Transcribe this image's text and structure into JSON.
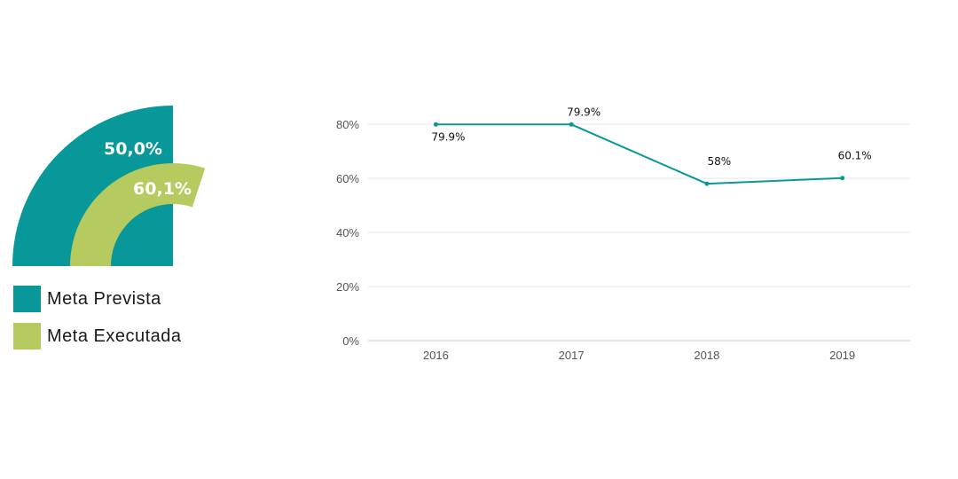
{
  "colors": {
    "teal": "#08989a",
    "green": "#b5ca5f",
    "grid": "#e6e6e6",
    "axis": "#cccccc"
  },
  "legend": [
    {
      "label": "Meta Prevista",
      "color": "#08989a"
    },
    {
      "label": "Meta Executada",
      "color": "#b5ca5f"
    }
  ],
  "chart_data": [
    {
      "type": "pie",
      "variant": "radial-gauge",
      "series": [
        {
          "name": "Meta Prevista",
          "value": 50.0,
          "label": "50,0%"
        },
        {
          "name": "Meta Executada",
          "value": 60.1,
          "label": "60,1%"
        }
      ]
    },
    {
      "type": "line",
      "x": [
        "2016",
        "2017",
        "2018",
        "2019"
      ],
      "values": [
        79.9,
        79.9,
        58,
        60.1
      ],
      "data_labels": [
        "79.9%",
        "79.9%",
        "58%",
        "60.1%"
      ],
      "ylim": [
        0,
        80
      ],
      "yticks": [
        0,
        20,
        40,
        60,
        80
      ],
      "ytick_labels": [
        "0%",
        "20%",
        "40%",
        "60%",
        "80%"
      ],
      "grid": true,
      "color": "#08989a"
    }
  ]
}
